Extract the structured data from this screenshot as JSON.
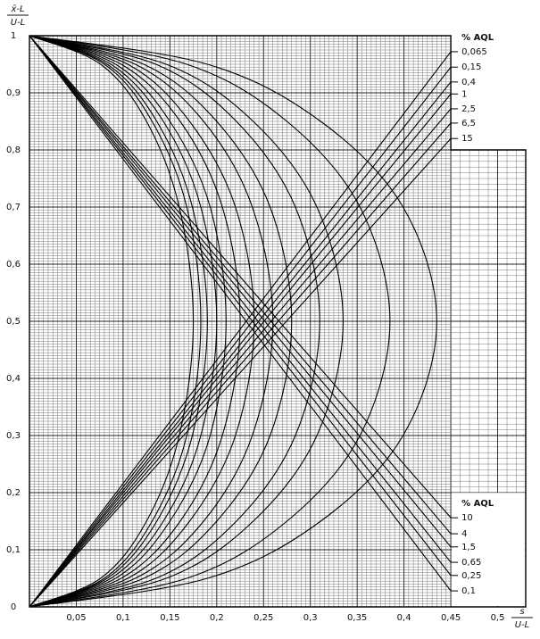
{
  "chart_data": {
    "type": "line",
    "y_title": [
      "x̄-L",
      "U-L"
    ],
    "x_title": [
      "s",
      "U-L"
    ],
    "xlim": [
      0,
      0.53
    ],
    "ylim": [
      0,
      1
    ],
    "xticks": [
      {
        "value": 0.05,
        "label": "0,05"
      },
      {
        "value": 0.1,
        "label": "0,1"
      },
      {
        "value": 0.15,
        "label": "0,15"
      },
      {
        "value": 0.2,
        "label": "0,2"
      },
      {
        "value": 0.25,
        "label": "0,25"
      },
      {
        "value": 0.3,
        "label": "0,3"
      },
      {
        "value": 0.35,
        "label": "0,35"
      },
      {
        "value": 0.4,
        "label": "0,4"
      },
      {
        "value": 0.45,
        "label": "0,45"
      },
      {
        "value": 0.5,
        "label": "0,5"
      }
    ],
    "yticks": [
      0,
      {
        "value": 0.1,
        "label": "0,1"
      },
      {
        "value": 0.2,
        "label": "0,2"
      },
      {
        "value": 0.3,
        "label": "0,3"
      },
      {
        "value": 0.4,
        "label": "0,4"
      },
      {
        "value": 0.5,
        "label": "0,5"
      },
      {
        "value": 0.6,
        "label": "0,6"
      },
      {
        "value": 0.7,
        "label": "0,7"
      },
      {
        "value": 0.8,
        "label": "0,8"
      },
      {
        "value": 0.9,
        "label": "0,9"
      },
      1
    ],
    "grid": true,
    "color": "#000000",
    "curve_y": [
      0,
      0.05,
      0.15,
      0.3,
      0.5,
      0.7,
      0.85,
      0.95,
      1
    ],
    "curves": [
      {
        "x": [
          0,
          0.076,
          0.125,
          0.16,
          0.175,
          0.16,
          0.125,
          0.076,
          0
        ]
      },
      {
        "x": [
          0,
          0.08,
          0.131,
          0.168,
          0.183,
          0.168,
          0.131,
          0.08,
          0
        ]
      },
      {
        "x": [
          0,
          0.083,
          0.136,
          0.174,
          0.19,
          0.174,
          0.136,
          0.083,
          0
        ]
      },
      {
        "x": [
          0,
          0.087,
          0.143,
          0.183,
          0.2,
          0.183,
          0.143,
          0.087,
          0
        ]
      },
      {
        "x": [
          0,
          0.092,
          0.15,
          0.193,
          0.21,
          0.193,
          0.15,
          0.092,
          0
        ]
      },
      {
        "x": [
          0,
          0.098,
          0.161,
          0.206,
          0.225,
          0.206,
          0.161,
          0.098,
          0
        ]
      },
      {
        "x": [
          0,
          0.105,
          0.171,
          0.22,
          0.24,
          0.22,
          0.171,
          0.105,
          0
        ]
      },
      {
        "x": [
          0,
          0.113,
          0.186,
          0.238,
          0.26,
          0.238,
          0.186,
          0.113,
          0
        ]
      },
      {
        "x": [
          0,
          0.122,
          0.2,
          0.257,
          0.28,
          0.257,
          0.2,
          0.122,
          0
        ]
      },
      {
        "x": [
          0,
          0.135,
          0.221,
          0.284,
          0.31,
          0.284,
          0.221,
          0.135,
          0
        ]
      },
      {
        "x": [
          0,
          0.146,
          0.239,
          0.307,
          0.335,
          0.307,
          0.239,
          0.146,
          0
        ]
      },
      {
        "x": [
          0,
          0.168,
          0.275,
          0.353,
          0.385,
          0.353,
          0.275,
          0.168,
          0
        ]
      },
      {
        "x": [
          0,
          0.19,
          0.311,
          0.399,
          0.435,
          0.399,
          0.311,
          0.19,
          0
        ]
      }
    ],
    "line_x": [
      0,
      0.45
    ],
    "lines_top": {
      "title": "% AQL",
      "series": [
        {
          "name": "0,065",
          "values": [
            0,
            0.972
          ]
        },
        {
          "name": "0,15",
          "values": [
            0,
            0.945
          ]
        },
        {
          "name": "0,4",
          "values": [
            0,
            0.919
          ]
        },
        {
          "name": "1",
          "values": [
            0,
            0.898
          ]
        },
        {
          "name": "2,5",
          "values": [
            0,
            0.872
          ]
        },
        {
          "name": "6,5",
          "values": [
            0,
            0.847
          ]
        },
        {
          "name": "15",
          "values": [
            0,
            0.82
          ]
        }
      ]
    },
    "lines_bottom": {
      "title": "% AQL",
      "series": [
        {
          "name": "10",
          "values": [
            1,
            0.156
          ]
        },
        {
          "name": "4",
          "values": [
            1,
            0.128
          ]
        },
        {
          "name": "1,5",
          "values": [
            1,
            0.105
          ]
        },
        {
          "name": "0,65",
          "values": [
            1,
            0.078
          ]
        },
        {
          "name": "0,25",
          "values": [
            1,
            0.055
          ]
        },
        {
          "name": "0,1",
          "values": [
            1,
            0.028
          ]
        }
      ]
    }
  }
}
